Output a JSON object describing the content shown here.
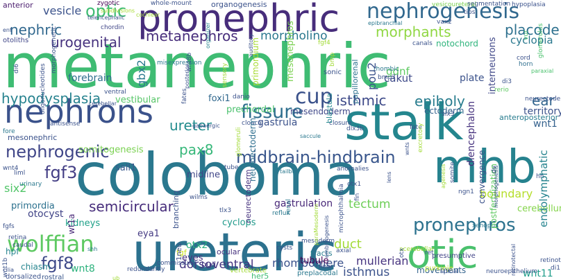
{
  "words": [
    {
      "text": "metanephric",
      "color": "#3fbc73"
    },
    {
      "text": "coloboma",
      "color": "#2a788e"
    },
    {
      "text": "ureteric",
      "color": "#2c718e"
    },
    {
      "text": "stalk",
      "color": "#24868e"
    },
    {
      "text": "pronephric",
      "color": "#472d7b"
    },
    {
      "text": "nephrons",
      "color": "#3b528b"
    },
    {
      "text": "mhb",
      "color": "#26828e"
    },
    {
      "text": "otic",
      "color": "#4ac16d"
    },
    {
      "text": "nephrogenesis",
      "color": "#31688e"
    },
    {
      "text": "wolffian",
      "color": "#5ec962"
    },
    {
      "text": "nephrogenic",
      "color": "#404688"
    },
    {
      "text": "fissure",
      "color": "#2e6e8e"
    },
    {
      "text": "midbrain-hindbrain",
      "color": "#39568c"
    },
    {
      "text": "pronephros",
      "color": "#2c728e"
    },
    {
      "text": "hypodysplasia",
      "color": "#26828e"
    },
    {
      "text": "fgf8",
      "color": "#3e4989"
    },
    {
      "text": "cup",
      "color": "#3b528b"
    },
    {
      "text": "fgf3",
      "color": "#433e85"
    },
    {
      "text": "morphants",
      "color": "#90d743"
    },
    {
      "text": "optic",
      "color": "#3fbc73"
    },
    {
      "text": "nephric",
      "color": "#31688e"
    },
    {
      "text": "metanephros",
      "color": "#472d7b"
    },
    {
      "text": "isthmic",
      "color": "#3e4a89"
    },
    {
      "text": "urogenital",
      "color": "#46327e"
    },
    {
      "text": "ureter",
      "color": "#228c8d"
    },
    {
      "text": "pax8",
      "color": "#35b779"
    },
    {
      "text": "semicircular",
      "color": "#472d7b"
    },
    {
      "text": "epiboly",
      "color": "#287c8e"
    },
    {
      "text": "placode",
      "color": "#2d708e"
    },
    {
      "text": "morpholino",
      "color": "#2a788e"
    },
    {
      "text": "gastrula",
      "color": "#3b528b"
    },
    {
      "text": "gastrulation",
      "color": "#482878"
    },
    {
      "text": "tectum",
      "color": "#6ece58"
    },
    {
      "text": "rhombomere",
      "color": "#3b528b"
    },
    {
      "text": "dorsoventral",
      "color": "#453781"
    },
    {
      "text": "isthmus",
      "color": "#3b528b"
    },
    {
      "text": "mullerian",
      "color": "#46337f"
    },
    {
      "text": "vesicle",
      "color": "#3b528b"
    },
    {
      "text": "cyclopia",
      "color": "#2a788e"
    },
    {
      "text": "ear",
      "color": "#32658e"
    },
    {
      "text": "wnt1",
      "color": "#34618d"
    },
    {
      "text": "otocyst",
      "color": "#414487"
    },
    {
      "text": "kidneys",
      "color": "#1fa088"
    },
    {
      "text": "wnt8",
      "color": "#2db27d"
    },
    {
      "text": "duct",
      "color": "#a2da37"
    },
    {
      "text": "boundary",
      "color": "#b5de2b"
    },
    {
      "text": "cerebellum",
      "color": "#84d44b"
    },
    {
      "text": "endolymphatic",
      "color": "#25838e"
    },
    {
      "text": "wnt11",
      "color": "#1e9c89"
    },
    {
      "text": "six2",
      "color": "#52c569"
    },
    {
      "text": "somitogenesis",
      "color": "#7ad151"
    },
    {
      "text": "forebrain",
      "color": "#2e6e8e"
    },
    {
      "text": "vestibular",
      "color": "#56c667"
    },
    {
      "text": "gbx2",
      "color": "#2a788e"
    },
    {
      "text": "sall1",
      "color": "#38598c"
    },
    {
      "text": "midline",
      "color": "#404688"
    },
    {
      "text": "cyclops",
      "color": "#1f9a8a"
    },
    {
      "text": "otx2",
      "color": "#29af7f"
    },
    {
      "text": "eya1",
      "color": "#443a83"
    },
    {
      "text": "mesendoderm",
      "color": "#3f4788"
    },
    {
      "text": "prechordal",
      "color": "#4ac16d"
    },
    {
      "text": "foxi1",
      "color": "#31688e"
    },
    {
      "text": "pou2",
      "color": "#3b528b"
    },
    {
      "text": "cakut",
      "color": "#3e4a89"
    },
    {
      "text": "gdnf",
      "color": "#5ec962"
    },
    {
      "text": "plate",
      "color": "#3b528b"
    },
    {
      "text": "territory",
      "color": "#3b528b"
    },
    {
      "text": "ectoderm",
      "color": "#33638d"
    },
    {
      "text": "neurectoderm",
      "color": "#46327e"
    },
    {
      "text": "papillorenal",
      "color": "#2c728e"
    },
    {
      "text": "mesonephros",
      "color": "#7ad151"
    },
    {
      "text": "mesonephric",
      "color": "#3b528b"
    },
    {
      "text": "notochord",
      "color": "#2fb47c"
    },
    {
      "text": "primordium",
      "color": "#a8db34"
    },
    {
      "text": "interneurons",
      "color": "#3f4788"
    },
    {
      "text": "glomerulus",
      "color": "#4ac16d"
    },
    {
      "text": "diencephalon",
      "color": "#46327e"
    },
    {
      "text": "convergence",
      "color": "#3b528b"
    },
    {
      "text": "postfertilization",
      "color": "#5ec962"
    },
    {
      "text": "movements",
      "color": "#33638d"
    },
    {
      "text": "presumptive",
      "color": "#414487"
    },
    {
      "text": "neuroectoderm",
      "color": "#2e6e8e"
    },
    {
      "text": "branching",
      "color": "#3b528b"
    },
    {
      "text": "wt1a",
      "color": "#482878"
    },
    {
      "text": "eyes",
      "color": "#75d054"
    },
    {
      "text": "bud",
      "color": "#46327e"
    },
    {
      "text": "chiasm",
      "color": "#433e85"
    },
    {
      "text": "hpf",
      "color": "#25848e"
    },
    {
      "text": "tubule",
      "color": "#25848e"
    },
    {
      "text": "1neu",
      "color": "#440154"
    },
    {
      "text": "anteroposterior",
      "color": "#3e4a89"
    },
    {
      "text": "primordia",
      "color": "#287c8e"
    },
    {
      "text": "fgf",
      "color": "#2c718e"
    },
    {
      "text": "ocular",
      "color": "#c8e020"
    },
    {
      "text": "her5",
      "color": "#46327e"
    },
    {
      "text": "preplacodal",
      "color": "#3fbc73"
    },
    {
      "text": "tracts",
      "color": "#2a788e"
    },
    {
      "text": "blastula",
      "color": "#287c8e"
    },
    {
      "text": "ret",
      "color": "#24878e"
    },
    {
      "text": "purkinje",
      "color": "#3b528b"
    },
    {
      "text": "dorsalized",
      "color": "#b5de2b"
    },
    {
      "text": "rostral",
      "color": "#3b528b"
    },
    {
      "text": "anterior",
      "color": "#39568c"
    },
    {
      "text": "zygotic",
      "color": "#481a6c"
    },
    {
      "text": "whole-mount",
      "color": "#440154"
    },
    {
      "text": "organogenesis",
      "color": "#3b528b"
    },
    {
      "text": "vesicoureteral",
      "color": "#3b528b"
    },
    {
      "text": "segmentation",
      "color": "#7ad151"
    },
    {
      "text": "hypoplasia",
      "color": "#3b528b"
    },
    {
      "text": "subdivisions",
      "color": "#3b528b"
    },
    {
      "text": "tips",
      "color": "#a8db34"
    },
    {
      "text": "vax2",
      "color": "#3b528b"
    },
    {
      "text": "chordin",
      "color": "#3b528b"
    },
    {
      "text": "otoliths",
      "color": "#404688"
    },
    {
      "text": "epibranchial",
      "color": "#404688"
    },
    {
      "text": "canals",
      "color": "#2a788e"
    },
    {
      "text": "cord",
      "color": "#3b528b"
    },
    {
      "text": "horn",
      "color": "#3b528b"
    },
    {
      "text": "paraxial",
      "color": "#2e6e8e"
    },
    {
      "text": "auditory",
      "color": "#4ac16d"
    },
    {
      "text": "wnt8b",
      "color": "#3b528b"
    },
    {
      "text": "misexpression",
      "color": "#3b528b"
    },
    {
      "text": "organizer",
      "color": "#2a788e"
    },
    {
      "text": "sonic",
      "color": "#25848e"
    },
    {
      "text": "bmp",
      "color": "#3b528b"
    },
    {
      "text": "bmp7",
      "color": "#a2da37"
    },
    {
      "text": "di3",
      "color": "#3b528b"
    },
    {
      "text": "rerio",
      "color": "#3b528b"
    },
    {
      "text": "ventral",
      "color": "#5ec962"
    },
    {
      "text": "danio",
      "color": "#3b528b"
    },
    {
      "text": "posterior",
      "color": "#3b528b"
    },
    {
      "text": "cerebellar",
      "color": "#3b528b"
    },
    {
      "text": "closure",
      "color": "#3b528b"
    },
    {
      "text": "dlx3b",
      "color": "#3b528b"
    },
    {
      "text": "saccule",
      "color": "#3b528b"
    },
    {
      "text": "rhombic",
      "color": "#2a788e"
    },
    {
      "text": "cloaca",
      "color": "#2a788e"
    },
    {
      "text": "fore",
      "color": "#3b528b"
    },
    {
      "text": "antisense",
      "color": "#2a788e"
    },
    {
      "text": "gabaergic",
      "color": "#3b528b"
    },
    {
      "text": "tube",
      "color": "#3b528b"
    },
    {
      "text": "tailbud",
      "color": "#3b528b"
    },
    {
      "text": "anomalies",
      "color": "#2a788e"
    },
    {
      "text": "wnt4",
      "color": "#3b528b"
    },
    {
      "text": "urinary",
      "color": "#3b528b"
    },
    {
      "text": "liml",
      "color": "#2a788e"
    },
    {
      "text": "fgfs",
      "color": "#3b528b"
    },
    {
      "text": "retina",
      "color": "#3b528b"
    },
    {
      "text": "caudal",
      "color": "#3b528b"
    },
    {
      "text": "wilms",
      "color": "#3b528b"
    },
    {
      "text": "tlx3",
      "color": "#3b528b"
    },
    {
      "text": "reflux",
      "color": "#3b528b"
    },
    {
      "text": "otx1",
      "color": "#2a788e"
    },
    {
      "text": "ngn1",
      "color": "#3b528b"
    },
    {
      "text": "xenopus",
      "color": "#3b528b"
    },
    {
      "text": "hh",
      "color": "#2a788e"
    },
    {
      "text": "cysts",
      "color": "#3b528b"
    },
    {
      "text": "axial",
      "color": "#3b528b"
    },
    {
      "text": "acerebellar",
      "color": "#3b528b"
    },
    {
      "text": "shh",
      "color": "#a2da37"
    },
    {
      "text": "redundantly",
      "color": "#2a788e"
    },
    {
      "text": "commissural",
      "color": "#3b528b"
    },
    {
      "text": "vertebrate",
      "color": "#3b528b"
    },
    {
      "text": "mesoderm",
      "color": "#a2da37"
    },
    {
      "text": "floor",
      "color": "#3b528b"
    },
    {
      "text": "spinal",
      "color": "#3b528b"
    },
    {
      "text": "neuroepithelium",
      "color": "#3b528b"
    },
    {
      "text": "retinotectal",
      "color": "#3b528b"
    },
    {
      "text": "di1",
      "color": "#3b528b"
    },
    {
      "text": "ub",
      "color": "#3b528b"
    },
    {
      "text": "cilia",
      "color": "#a2da37"
    },
    {
      "text": "morphogenetic",
      "color": "#3b528b"
    },
    {
      "text": "di6",
      "color": "#3b528b"
    },
    {
      "text": "ent",
      "color": "#3b528b"
    },
    {
      "text": "oligonucleotides",
      "color": "#3b528b"
    },
    {
      "text": "sensory",
      "color": "#a2da37"
    },
    {
      "text": "fates",
      "color": "#3b528b"
    },
    {
      "text": "excretory",
      "color": "#a2da37"
    },
    {
      "text": "lens",
      "color": "#3b528b"
    },
    {
      "text": "wnts",
      "color": "#3b528b"
    },
    {
      "text": "somite",
      "color": "#3b528b"
    },
    {
      "text": "agenesis",
      "color": "#a2da37"
    },
    {
      "text": "fin",
      "color": "#3b528b"
    },
    {
      "text": "microphthalmia",
      "color": "#3b528b"
    },
    {
      "text": "renal",
      "color": "#2a788e"
    },
    {
      "text": "embryogenesis",
      "color": "#3b528b"
    },
    {
      "text": "paraMesoderm",
      "color": "#a2da37"
    },
    {
      "text": "otx",
      "color": "#3b528b"
    },
    {
      "text": "morphogenesis",
      "color": "#3b528b"
    },
    {
      "text": "retinotectal",
      "color": "#3b528b"
    },
    {
      "text": "fgf4",
      "color": "#a2da37"
    },
    {
      "text": "cochlear",
      "color": "#a2da37"
    },
    {
      "text": "telencephalic",
      "color": "#a2da37"
    },
    {
      "text": "vur",
      "color": "#3b528b"
    },
    {
      "text": "glomeruli",
      "color": "#4ac16d"
    },
    {
      "text": "six3",
      "color": "#a2da37"
    },
    {
      "text": "fate",
      "color": "#3b528b"
    },
    {
      "text": "dv",
      "color": "#3b528b"
    },
    {
      "text": "neurectoderm",
      "color": "#3b528b"
    },
    {
      "text": "wnt1b",
      "color": "#3b528b"
    },
    {
      "text": "rostral",
      "color": "#3b528b"
    }
  ]
}
